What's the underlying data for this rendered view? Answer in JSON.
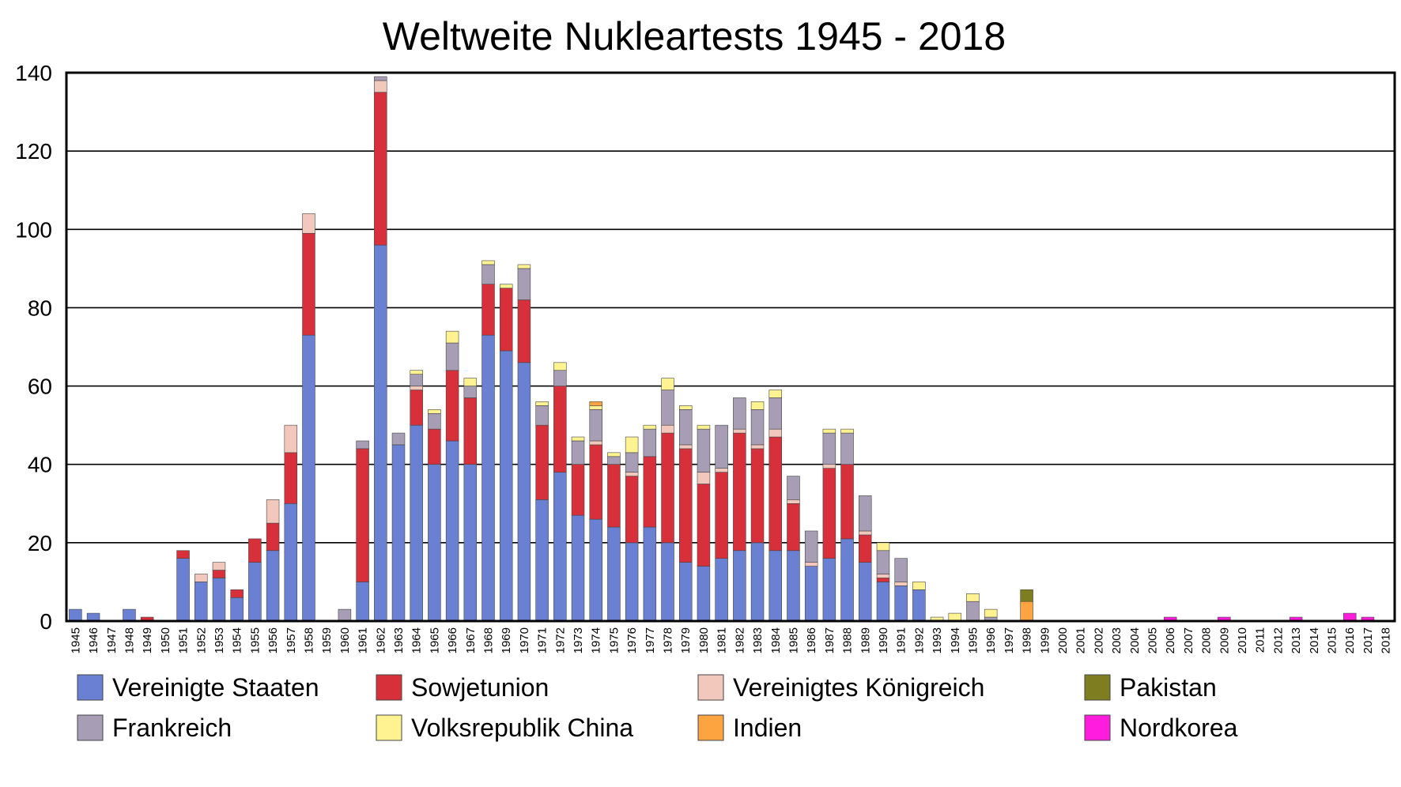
{
  "chart_data": {
    "type": "bar",
    "stacked": true,
    "title": "Weltweite Nukleartests 1945 - 2018",
    "xlabel": "",
    "ylabel": "",
    "ylim": [
      0,
      140
    ],
    "yticks": [
      0,
      20,
      40,
      60,
      80,
      100,
      120,
      140
    ],
    "grid": true,
    "legend_position": "bottom",
    "categories": [
      "1945",
      "1946",
      "1947",
      "1948",
      "1949",
      "1950",
      "1951",
      "1952",
      "1953",
      "1954",
      "1955",
      "1956",
      "1957",
      "1958",
      "1959",
      "1960",
      "1961",
      "1962",
      "1963",
      "1964",
      "1965",
      "1966",
      "1967",
      "1968",
      "1969",
      "1970",
      "1971",
      "1972",
      "1973",
      "1974",
      "1975",
      "1976",
      "1977",
      "1978",
      "1979",
      "1980",
      "1981",
      "1982",
      "1983",
      "1984",
      "1985",
      "1986",
      "1987",
      "1988",
      "1989",
      "1990",
      "1991",
      "1992",
      "1993",
      "1994",
      "1995",
      "1996",
      "1997",
      "1998",
      "1999",
      "2000",
      "2001",
      "2002",
      "2003",
      "2004",
      "2005",
      "2006",
      "2007",
      "2008",
      "2009",
      "2010",
      "2011",
      "2012",
      "2013",
      "2014",
      "2015",
      "2016",
      "2017",
      "2018"
    ],
    "series": [
      {
        "name": "Vereinigte Staaten",
        "color": "#6a80d2",
        "values": [
          3,
          2,
          0,
          3,
          0,
          0,
          16,
          10,
          11,
          6,
          15,
          18,
          30,
          73,
          0,
          0,
          10,
          96,
          45,
          50,
          40,
          46,
          40,
          73,
          69,
          66,
          31,
          38,
          27,
          26,
          24,
          20,
          24,
          20,
          15,
          14,
          16,
          18,
          20,
          18,
          18,
          14,
          16,
          21,
          15,
          10,
          9,
          8,
          0,
          0,
          0,
          0,
          0,
          0,
          0,
          0,
          0,
          0,
          0,
          0,
          0,
          0,
          0,
          0,
          0,
          0,
          0,
          0,
          0,
          0,
          0,
          0,
          0,
          0
        ]
      },
      {
        "name": "Sowjetunion",
        "color": "#d8303a",
        "values": [
          0,
          0,
          0,
          0,
          1,
          0,
          2,
          0,
          2,
          2,
          6,
          7,
          13,
          26,
          0,
          0,
          34,
          39,
          0,
          9,
          9,
          18,
          17,
          13,
          16,
          16,
          19,
          22,
          13,
          19,
          16,
          17,
          18,
          28,
          29,
          21,
          22,
          30,
          24,
          29,
          12,
          0,
          23,
          19,
          7,
          1,
          0,
          0,
          0,
          0,
          0,
          0,
          0,
          0,
          0,
          0,
          0,
          0,
          0,
          0,
          0,
          0,
          0,
          0,
          0,
          0,
          0,
          0,
          0,
          0,
          0,
          0,
          0,
          0
        ]
      },
      {
        "name": "Vereinigtes Königreich",
        "color": "#f2c8bc",
        "values": [
          0,
          0,
          0,
          0,
          0,
          0,
          0,
          2,
          2,
          0,
          0,
          6,
          7,
          5,
          0,
          0,
          0,
          3,
          0,
          1,
          0,
          0,
          0,
          0,
          0,
          0,
          0,
          0,
          0,
          1,
          0,
          1,
          0,
          2,
          1,
          3,
          1,
          1,
          1,
          2,
          1,
          1,
          1,
          0,
          1,
          1,
          1,
          0,
          0,
          0,
          0,
          0,
          0,
          0,
          0,
          0,
          0,
          0,
          0,
          0,
          0,
          0,
          0,
          0,
          0,
          0,
          0,
          0,
          0,
          0,
          0,
          0,
          0,
          0
        ]
      },
      {
        "name": "Frankreich",
        "color": "#a79eb6",
        "values": [
          0,
          0,
          0,
          0,
          0,
          0,
          0,
          0,
          0,
          0,
          0,
          0,
          0,
          0,
          0,
          3,
          2,
          1,
          3,
          3,
          4,
          7,
          3,
          5,
          0,
          8,
          5,
          4,
          6,
          8,
          2,
          5,
          7,
          9,
          9,
          11,
          11,
          8,
          9,
          8,
          6,
          8,
          8,
          8,
          9,
          6,
          6,
          0,
          0,
          0,
          5,
          1,
          0,
          0,
          0,
          0,
          0,
          0,
          0,
          0,
          0,
          0,
          0,
          0,
          0,
          0,
          0,
          0,
          0,
          0,
          0,
          0,
          0,
          0
        ]
      },
      {
        "name": "Volksrepublik China",
        "color": "#fff291",
        "values": [
          0,
          0,
          0,
          0,
          0,
          0,
          0,
          0,
          0,
          0,
          0,
          0,
          0,
          0,
          0,
          0,
          0,
          0,
          0,
          1,
          1,
          3,
          2,
          1,
          1,
          1,
          1,
          2,
          1,
          1,
          1,
          4,
          1,
          3,
          1,
          1,
          0,
          0,
          2,
          2,
          0,
          0,
          1,
          1,
          0,
          2,
          0,
          2,
          1,
          2,
          2,
          2,
          0,
          0,
          0,
          0,
          0,
          0,
          0,
          0,
          0,
          0,
          0,
          0,
          0,
          0,
          0,
          0,
          0,
          0,
          0,
          0,
          0,
          0
        ]
      },
      {
        "name": "Indien",
        "color": "#fca540",
        "values": [
          0,
          0,
          0,
          0,
          0,
          0,
          0,
          0,
          0,
          0,
          0,
          0,
          0,
          0,
          0,
          0,
          0,
          0,
          0,
          0,
          0,
          0,
          0,
          0,
          0,
          0,
          0,
          0,
          0,
          1,
          0,
          0,
          0,
          0,
          0,
          0,
          0,
          0,
          0,
          0,
          0,
          0,
          0,
          0,
          0,
          0,
          0,
          0,
          0,
          0,
          0,
          0,
          0,
          5,
          0,
          0,
          0,
          0,
          0,
          0,
          0,
          0,
          0,
          0,
          0,
          0,
          0,
          0,
          0,
          0,
          0,
          0,
          0,
          0
        ]
      },
      {
        "name": "Pakistan",
        "color": "#7e7e21",
        "values": [
          0,
          0,
          0,
          0,
          0,
          0,
          0,
          0,
          0,
          0,
          0,
          0,
          0,
          0,
          0,
          0,
          0,
          0,
          0,
          0,
          0,
          0,
          0,
          0,
          0,
          0,
          0,
          0,
          0,
          0,
          0,
          0,
          0,
          0,
          0,
          0,
          0,
          0,
          0,
          0,
          0,
          0,
          0,
          0,
          0,
          0,
          0,
          0,
          0,
          0,
          0,
          0,
          0,
          3,
          0,
          0,
          0,
          0,
          0,
          0,
          0,
          0,
          0,
          0,
          0,
          0,
          0,
          0,
          0,
          0,
          0,
          0,
          0,
          0
        ]
      },
      {
        "name": "Nordkorea",
        "color": "#ff1cdc",
        "values": [
          0,
          0,
          0,
          0,
          0,
          0,
          0,
          0,
          0,
          0,
          0,
          0,
          0,
          0,
          0,
          0,
          0,
          0,
          0,
          0,
          0,
          0,
          0,
          0,
          0,
          0,
          0,
          0,
          0,
          0,
          0,
          0,
          0,
          0,
          0,
          0,
          0,
          0,
          0,
          0,
          0,
          0,
          0,
          0,
          0,
          0,
          0,
          0,
          0,
          0,
          0,
          0,
          0,
          0,
          0,
          0,
          0,
          0,
          0,
          0,
          0,
          1,
          0,
          0,
          1,
          0,
          0,
          0,
          1,
          0,
          0,
          2,
          1,
          0
        ]
      }
    ],
    "legend_order": [
      "Vereinigte Staaten",
      "Sowjetunion",
      "Vereinigtes Königreich",
      "Pakistan",
      "Frankreich",
      "Volksrepublik China",
      "Indien",
      "Nordkorea"
    ]
  }
}
